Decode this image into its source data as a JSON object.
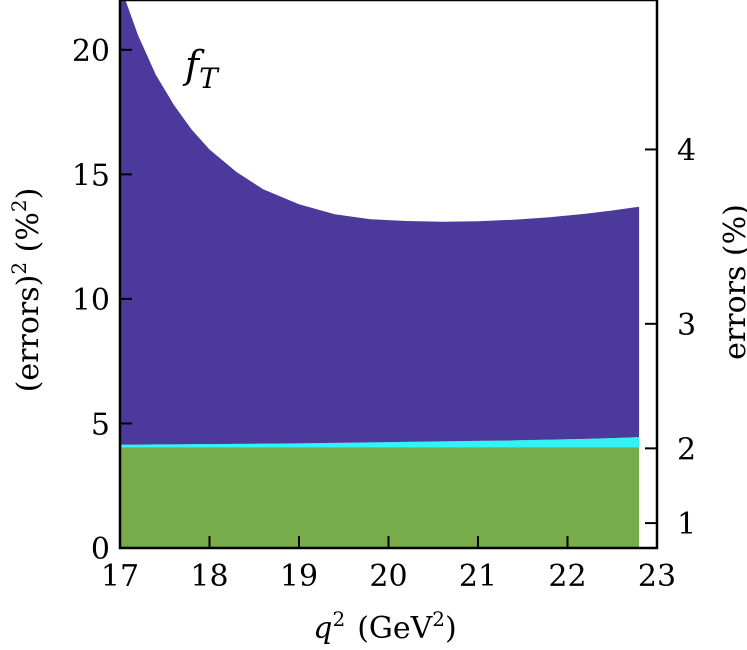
{
  "chart_data": {
    "type": "area",
    "annotation": {
      "main": "f",
      "sub": "T"
    },
    "xlabel": {
      "var": "q",
      "var_sup": "2",
      "unit_pre": "(GeV",
      "unit_sup": "2",
      "unit_post": ")"
    },
    "ylabel_left": {
      "pre": "(errors)",
      "sup1": "2",
      "mid": " (%",
      "sup2": "2",
      "post": ")"
    },
    "ylabel_right": "errors (%)",
    "xlim": [
      17,
      23
    ],
    "ylim": [
      0,
      22
    ],
    "x_ticks": [
      17,
      18,
      19,
      20,
      21,
      22,
      23
    ],
    "y_ticks_left": [
      0,
      5,
      10,
      15,
      20
    ],
    "y_ticks_right": [
      1,
      2,
      3,
      4
    ],
    "x": [
      17.0,
      17.2,
      17.4,
      17.6,
      17.8,
      18.0,
      18.3,
      18.6,
      19.0,
      19.4,
      19.8,
      20.2,
      20.6,
      21.0,
      21.4,
      21.8,
      22.2,
      22.5,
      22.8
    ],
    "series": [
      {
        "color": "#76ad4a",
        "values": [
          4.05,
          4.05,
          4.05,
          4.05,
          4.05,
          4.05,
          4.05,
          4.05,
          4.05,
          4.05,
          4.05,
          4.05,
          4.05,
          4.05,
          4.05,
          4.05,
          4.05,
          4.05,
          4.05
        ]
      },
      {
        "color": "#2ff5fa",
        "values": [
          4.15,
          4.15,
          4.16,
          4.16,
          4.17,
          4.17,
          4.18,
          4.19,
          4.2,
          4.22,
          4.24,
          4.26,
          4.28,
          4.3,
          4.32,
          4.35,
          4.38,
          4.41,
          4.45
        ]
      },
      {
        "color": "#4b3a9c",
        "values": [
          22.6,
          20.6,
          19.0,
          17.8,
          16.8,
          16.0,
          15.1,
          14.4,
          13.8,
          13.4,
          13.2,
          13.13,
          13.1,
          13.12,
          13.18,
          13.28,
          13.42,
          13.55,
          13.7
        ]
      }
    ]
  }
}
